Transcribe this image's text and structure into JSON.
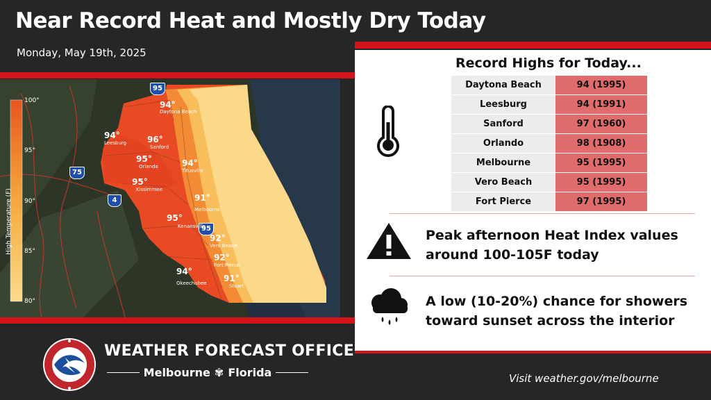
{
  "header": {
    "title": "Near Record Heat and Mostly Dry Today",
    "date": "Monday, May 19th, 2025"
  },
  "legend": {
    "title": "High Temperature (F)",
    "ticks": [
      "100°",
      "95°",
      "90°",
      "85°",
      "80°"
    ]
  },
  "map": {
    "highways": [
      "95",
      "75",
      "4",
      "95"
    ],
    "cities": [
      {
        "temp": "94°",
        "name": "Daytona Beach"
      },
      {
        "temp": "94°",
        "name": "Leesburg"
      },
      {
        "temp": "96°",
        "name": "Sanford"
      },
      {
        "temp": "95°",
        "name": "Orlando"
      },
      {
        "temp": "94°",
        "name": "Titusville"
      },
      {
        "temp": "95°",
        "name": "Kissimmee"
      },
      {
        "temp": "91°",
        "name": "Melbourne"
      },
      {
        "temp": "95°",
        "name": "Kenansville"
      },
      {
        "temp": "92°",
        "name": "Vero Beach"
      },
      {
        "temp": "92°",
        "name": "Fort Pierce"
      },
      {
        "temp": "94°",
        "name": "Okeechobee"
      },
      {
        "temp": "91°",
        "name": "Stuart"
      }
    ]
  },
  "records": {
    "title": "Record Highs for Today...",
    "rows": [
      {
        "city": "Daytona Beach",
        "value": "94 (1995)"
      },
      {
        "city": "Leesburg",
        "value": "94 (1991)"
      },
      {
        "city": "Sanford",
        "value": "97 (1960)"
      },
      {
        "city": "Orlando",
        "value": "98 (1908)"
      },
      {
        "city": "Melbourne",
        "value": "95 (1995)"
      },
      {
        "city": "Vero Beach",
        "value": "95 (1995)"
      },
      {
        "city": "Fort Pierce",
        "value": "97 (1995)"
      }
    ]
  },
  "messages": {
    "heat_line1": "Peak afternoon Heat Index values",
    "heat_line2": "around 100-105F today",
    "rain_line1": "A low (10-20%) chance for showers",
    "rain_line2": "toward sunset across the interior"
  },
  "footer": {
    "office": "WEATHER FORECAST OFFICE",
    "city": "Melbourne",
    "state": "Florida",
    "visit": "Visit weather.gov/melbourne"
  },
  "logo": {
    "text": "NATIONAL WEATHER SERVICE"
  },
  "colors": {
    "brand_red": "#d3141b",
    "background": "#262626",
    "record_cell": "#e06b6b"
  }
}
